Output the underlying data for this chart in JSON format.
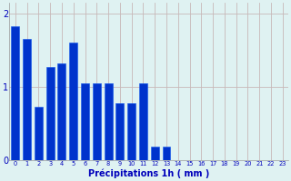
{
  "categories": [
    0,
    1,
    2,
    3,
    4,
    5,
    6,
    7,
    8,
    9,
    10,
    11,
    12,
    13,
    14,
    15,
    16,
    17,
    18,
    19,
    20,
    21,
    22,
    23
  ],
  "values": [
    1.82,
    1.65,
    0.72,
    1.27,
    1.32,
    1.6,
    1.05,
    1.05,
    1.05,
    0.78,
    0.78,
    1.05,
    0.18,
    0.18,
    0,
    0,
    0,
    0,
    0,
    0,
    0,
    0,
    0,
    0
  ],
  "bar_color": "#0033cc",
  "bar_edge_color": "#1155ee",
  "background_color": "#dff2f2",
  "grid_color": "#c8b8b8",
  "xlabel": "Précipitations 1h ( mm )",
  "xlabel_color": "#0000bb",
  "tick_color": "#0000bb",
  "ylabel_ticks": [
    0,
    1,
    2
  ],
  "ylim": [
    0,
    2.15
  ],
  "xlim_min": -0.5,
  "xlim_max": 23.5
}
